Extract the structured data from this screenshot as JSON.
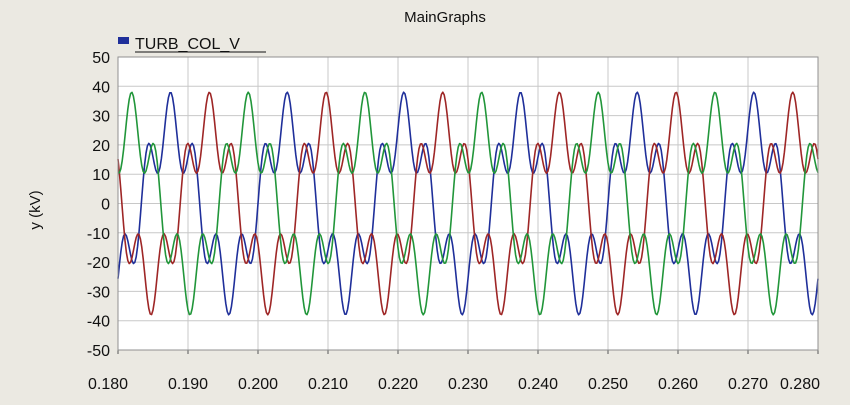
{
  "window": {
    "title": "MainGraphs"
  },
  "colors": {
    "background": "#ebe9e2",
    "plot_bg": "#ffffff",
    "grid": "#c8c8c8"
  },
  "chart_data": {
    "type": "line",
    "title": "MainGraphs",
    "xlabel": "",
    "ylabel": "y (kV)",
    "xlim": [
      0.18,
      0.28
    ],
    "ylim": [
      -50,
      50
    ],
    "x_ticks": [
      "0.180",
      "0.190",
      "0.200",
      "0.210",
      "0.220",
      "0.230",
      "0.240",
      "0.250",
      "0.260",
      "0.270",
      "0.280"
    ],
    "y_ticks": [
      "50",
      "40",
      "30",
      "20",
      "10",
      "0",
      "-10",
      "-20",
      "-30",
      "-40",
      "-50"
    ],
    "grid": true,
    "legend": {
      "placement": "top-left",
      "entries": [
        "TURB_COL_V"
      ]
    },
    "waveform": {
      "fundamental_hz": 60,
      "fundamental_amplitude_kv": 27,
      "harmonic_order": 5,
      "harmonic_amplitude_kv": 11,
      "sample_step_s": 0.0002
    },
    "series": [
      {
        "color": "#1f2f9a",
        "phase_deg": 0
      },
      {
        "color": "#9e2626",
        "phase_deg": -120
      },
      {
        "color": "#21963a",
        "phase_deg": 120
      }
    ]
  }
}
